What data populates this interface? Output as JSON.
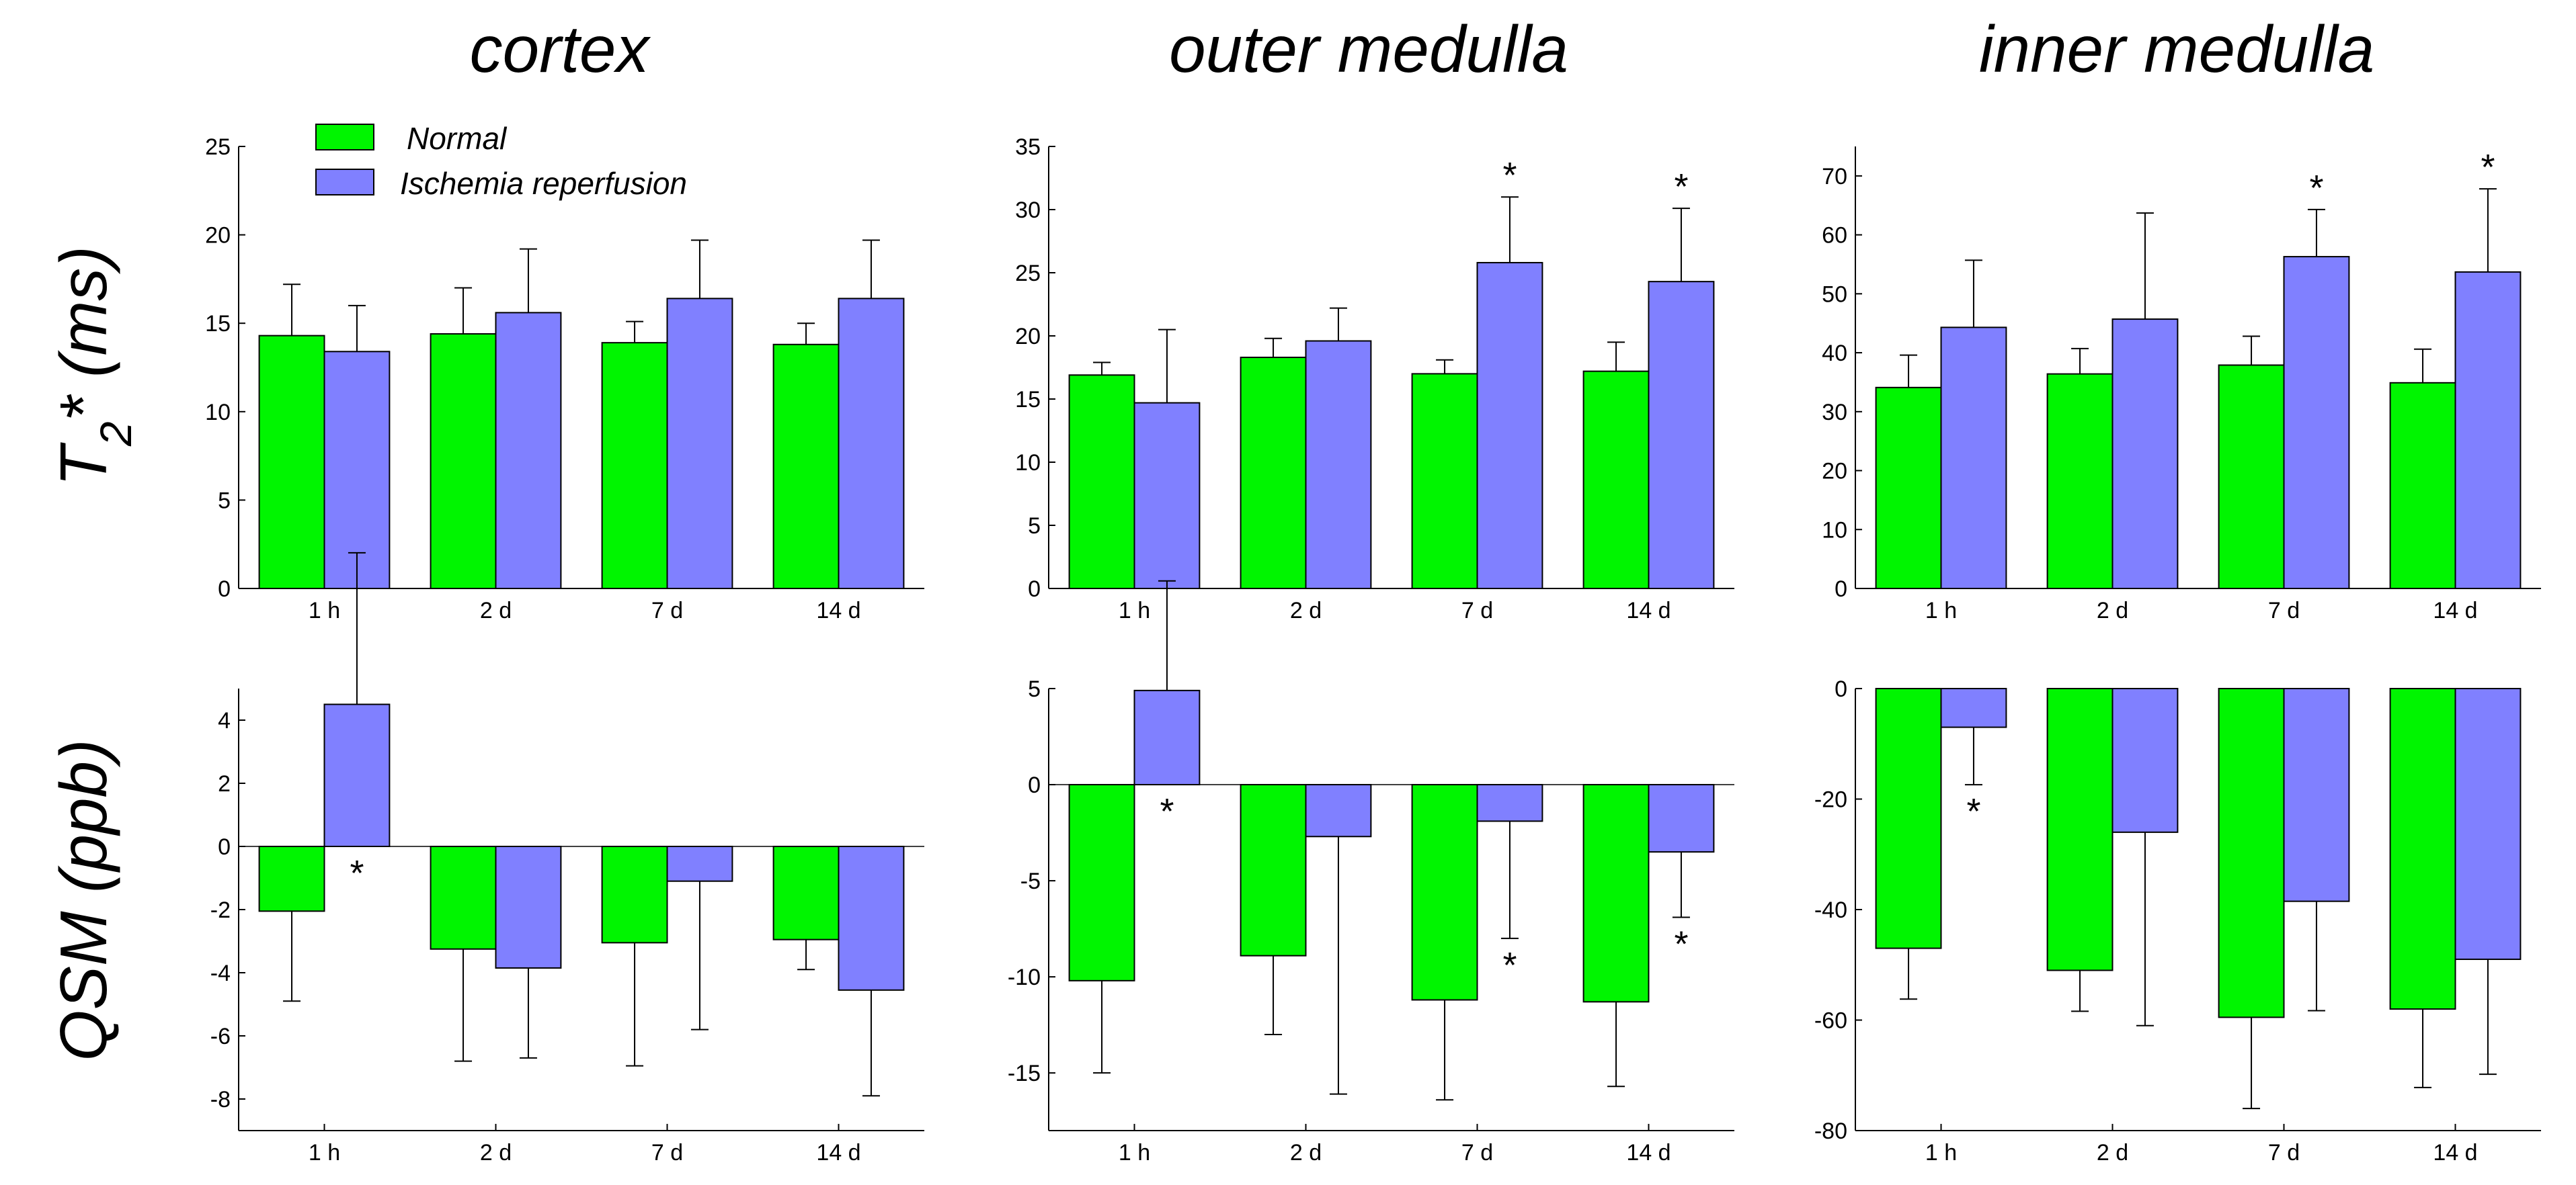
{
  "colors": {
    "normal": "#00f500",
    "ischemia": "#8080ff"
  },
  "rows": [
    {
      "label_main": "T",
      "label_sub": "2",
      "label_rest": "* (ms)"
    },
    {
      "label_main": "QSM (ppb)",
      "label_sub": "",
      "label_rest": ""
    }
  ],
  "legend": {
    "normal": "Normal",
    "ischemia": "Ischemia reperfusion"
  },
  "chart_data": [
    {
      "type": "bar",
      "title": "cortex",
      "row": 0,
      "col": 0,
      "categories": [
        "1 h",
        "2 d",
        "7 d",
        "14 d"
      ],
      "ylim": [
        0,
        25
      ],
      "yticks": [
        0,
        5,
        10,
        15,
        20,
        25
      ],
      "series": [
        {
          "name": "Normal",
          "values": [
            14.3,
            14.4,
            13.9,
            13.8
          ],
          "errors": [
            2.9,
            2.6,
            1.2,
            1.2
          ]
        },
        {
          "name": "Ischemia reperfusion",
          "values": [
            13.4,
            15.6,
            16.4,
            16.4
          ],
          "errors": [
            2.6,
            3.6,
            3.3,
            3.3
          ]
        }
      ],
      "significant": [
        false,
        false,
        false,
        false
      ]
    },
    {
      "type": "bar",
      "title": "outer medulla",
      "row": 0,
      "col": 1,
      "categories": [
        "1 h",
        "2 d",
        "7 d",
        "14 d"
      ],
      "ylim": [
        0,
        35
      ],
      "yticks": [
        0,
        5,
        10,
        15,
        20,
        25,
        30,
        35
      ],
      "series": [
        {
          "name": "Normal",
          "values": [
            16.9,
            18.3,
            17.0,
            17.2
          ],
          "errors": [
            1.0,
            1.5,
            1.1,
            2.3
          ]
        },
        {
          "name": "Ischemia reperfusion",
          "values": [
            14.7,
            19.6,
            25.8,
            24.3
          ],
          "errors": [
            5.8,
            2.6,
            5.2,
            5.8
          ]
        }
      ],
      "significant": [
        false,
        false,
        true,
        true
      ]
    },
    {
      "type": "bar",
      "title": "inner medulla",
      "row": 0,
      "col": 2,
      "categories": [
        "1 h",
        "2 d",
        "7 d",
        "14 d"
      ],
      "ylim": [
        0,
        75
      ],
      "yticks": [
        0,
        10,
        20,
        30,
        40,
        50,
        60,
        70
      ],
      "series": [
        {
          "name": "Normal",
          "values": [
            34.1,
            36.4,
            37.9,
            34.9
          ],
          "errors": [
            5.5,
            4.3,
            4.9,
            5.7
          ]
        },
        {
          "name": "Ischemia reperfusion",
          "values": [
            44.3,
            45.7,
            56.3,
            53.7
          ],
          "errors": [
            11.4,
            18.0,
            8.0,
            14.1
          ]
        }
      ],
      "significant": [
        false,
        false,
        true,
        true
      ]
    },
    {
      "type": "bar",
      "title": "",
      "row": 1,
      "col": 0,
      "categories": [
        "1 h",
        "2 d",
        "7 d",
        "14 d"
      ],
      "ylim": [
        -9,
        5
      ],
      "yticks": [
        -8,
        -6,
        -4,
        -2,
        0,
        2,
        4
      ],
      "series": [
        {
          "name": "Normal",
          "values": [
            -2.05,
            -3.25,
            -3.05,
            -2.95
          ],
          "errors": [
            2.85,
            3.55,
            3.9,
            0.95
          ]
        },
        {
          "name": "Ischemia reperfusion",
          "values": [
            4.5,
            -3.85,
            -1.1,
            -4.55
          ],
          "errors": [
            4.8,
            2.85,
            4.7,
            3.35
          ]
        }
      ],
      "significant": [
        true,
        false,
        false,
        false
      ]
    },
    {
      "type": "bar",
      "title": "",
      "row": 1,
      "col": 1,
      "categories": [
        "1 h",
        "2 d",
        "7 d",
        "14 d"
      ],
      "ylim": [
        -18,
        5
      ],
      "yticks": [
        -15,
        -10,
        -5,
        0,
        5
      ],
      "series": [
        {
          "name": "Normal",
          "values": [
            -10.2,
            -8.9,
            -11.2,
            -11.3
          ],
          "errors": [
            4.8,
            4.1,
            5.2,
            4.4
          ]
        },
        {
          "name": "Ischemia reperfusion",
          "values": [
            4.9,
            -2.7,
            -1.9,
            -3.5
          ],
          "errors": [
            5.7,
            13.4,
            6.1,
            3.4
          ]
        }
      ],
      "significant": [
        true,
        false,
        true,
        true
      ]
    },
    {
      "type": "bar",
      "title": "",
      "row": 1,
      "col": 2,
      "categories": [
        "1 h",
        "2 d",
        "7 d",
        "14 d"
      ],
      "ylim": [
        -80,
        0
      ],
      "yticks": [
        -80,
        -60,
        -40,
        -20,
        0
      ],
      "series": [
        {
          "name": "Normal",
          "values": [
            -47,
            -51,
            -59.5,
            -58
          ],
          "errors": [
            9.2,
            7.4,
            16.5,
            14.2
          ]
        },
        {
          "name": "Ischemia reperfusion",
          "values": [
            -7,
            -26,
            -38.5,
            -49
          ],
          "errors": [
            10.4,
            35.0,
            19.8,
            20.8
          ]
        }
      ],
      "significant": [
        true,
        false,
        false,
        false
      ]
    }
  ]
}
